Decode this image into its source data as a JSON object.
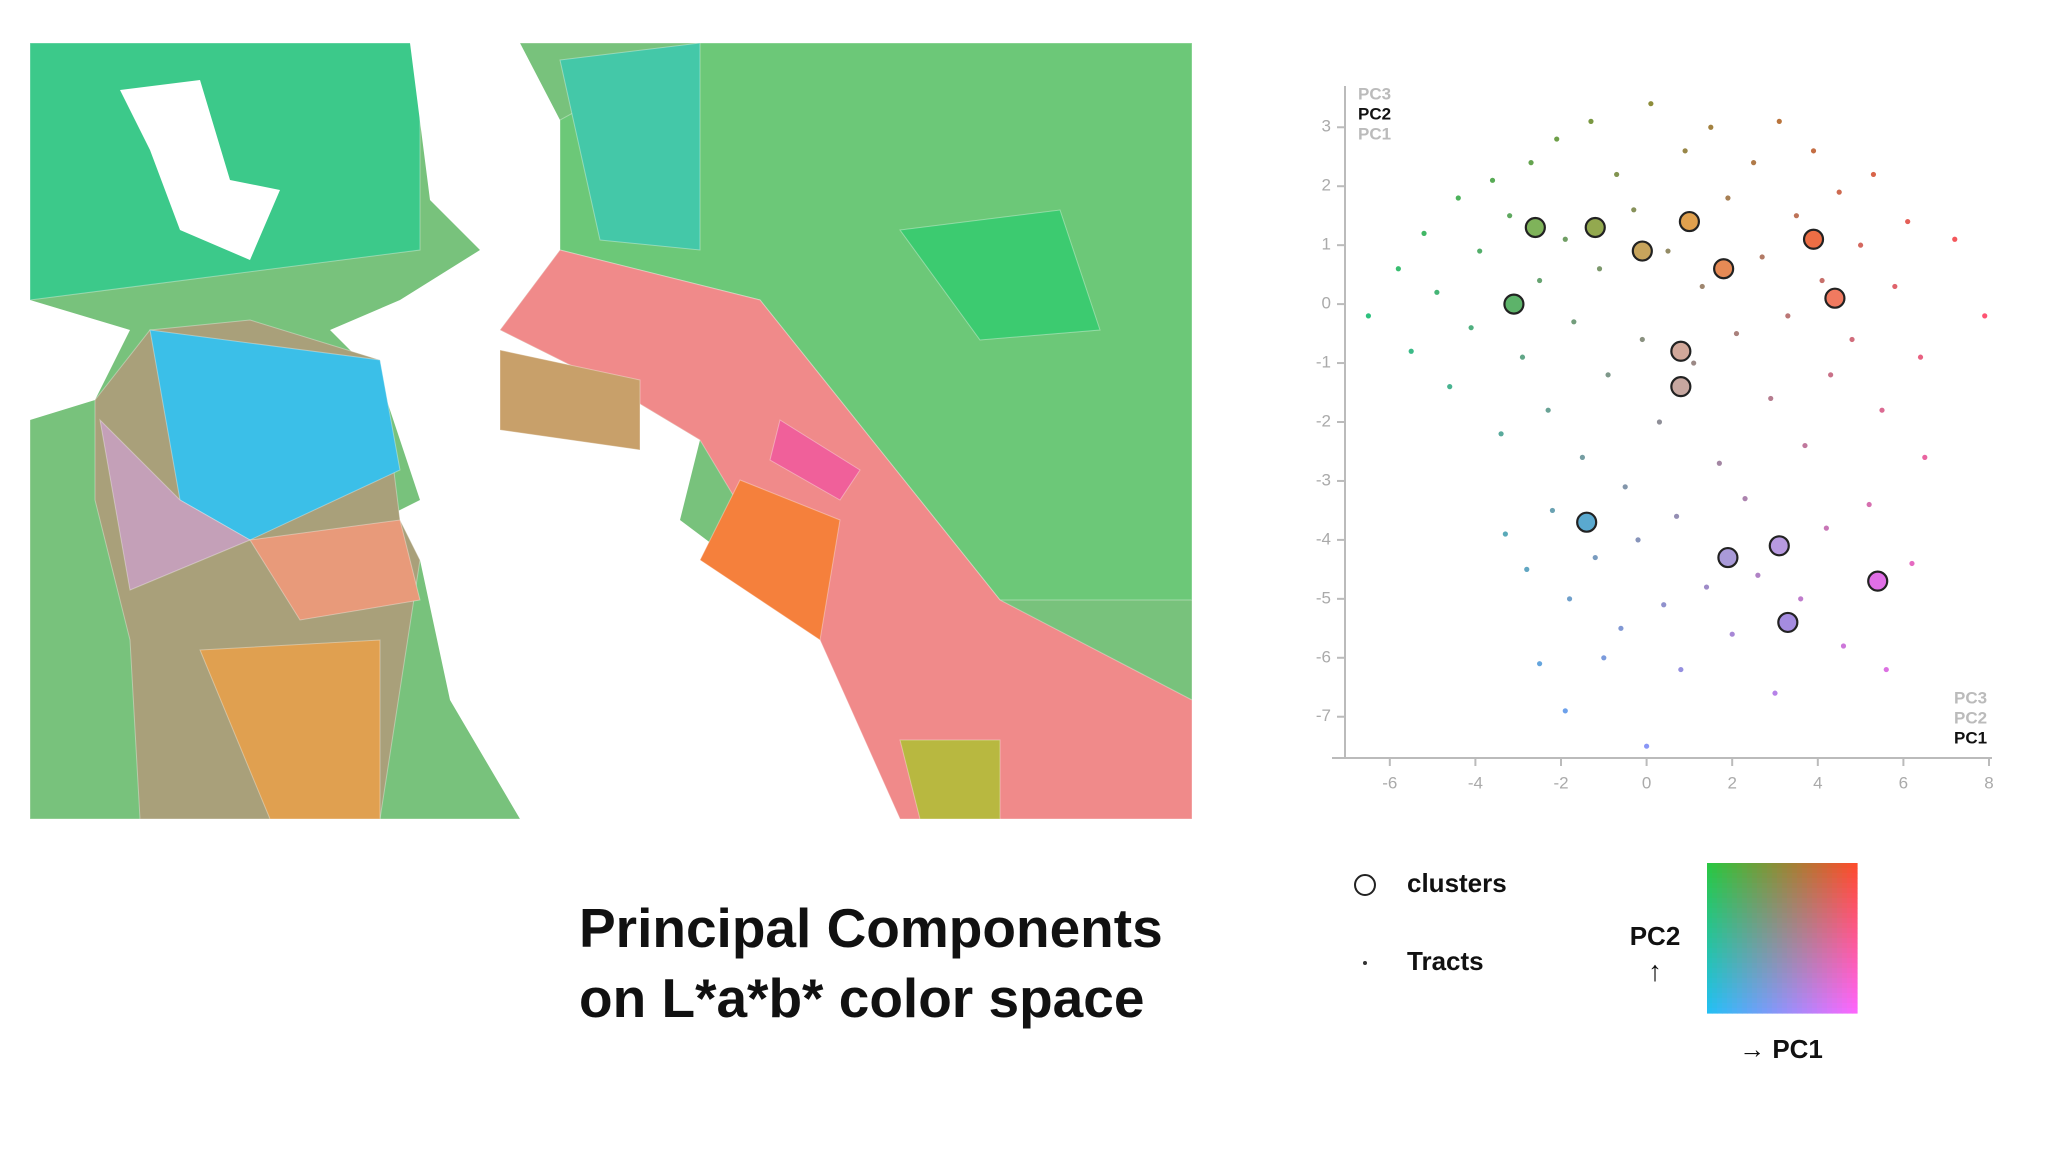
{
  "chart_data": {
    "type": "scatter",
    "title": [
      "Principal Components",
      "on L*a*b* color space"
    ],
    "axis_options": [
      "PC3",
      "PC2",
      "PC1"
    ],
    "x_label": "PC1",
    "y_label": "PC2",
    "xlim": [
      -7,
      8
    ],
    "ylim": [
      -7.7,
      3.7
    ],
    "xticks": [
      -6,
      -4,
      -2,
      0,
      2,
      4,
      6,
      8
    ],
    "yticks": [
      3,
      2,
      1,
      0,
      -1,
      -2,
      -3,
      -4,
      -5,
      -6,
      -7
    ],
    "colormap": {
      "top_left": "#28c840",
      "top_right": "#ff4a2a",
      "bottom_left": "#22c0f5",
      "bottom_right": "#ff66ff"
    },
    "colormap_y_label": "PC2",
    "colormap_y_arrow": "↑",
    "colormap_x_label": "→ PC1",
    "series": [
      {
        "name": "clusters",
        "marker": "circle",
        "x": [
          -2.6,
          -1.2,
          -0.1,
          1.0,
          1.8,
          3.9,
          4.4,
          -3.1,
          0.8,
          0.8,
          -1.4,
          1.9,
          3.1,
          5.4,
          3.3
        ],
        "values": [
          1.3,
          1.3,
          0.9,
          1.4,
          0.6,
          1.1,
          0.1,
          0.0,
          -0.8,
          -1.4,
          -3.7,
          -4.3,
          -4.1,
          -4.7,
          -5.4
        ],
        "colors": [
          "#7fb35a",
          "#93a94f",
          "#c7a45c",
          "#e0a04e",
          "#e68a55",
          "#ec6e45",
          "#f07a60",
          "#5db36a",
          "#d2a89a",
          "#c7a7a0",
          "#5aa9cf",
          "#a99ad8",
          "#b89ae0",
          "#e06fe6",
          "#a58ce0"
        ]
      },
      {
        "name": "Tracts",
        "marker": "dot",
        "color_by": "colormap",
        "x": [
          -6.5,
          -5.8,
          -5.5,
          -5.2,
          -4.9,
          -4.6,
          -4.4,
          -4.1,
          -3.9,
          -3.6,
          -3.4,
          -3.2,
          -2.9,
          -2.7,
          -2.5,
          -2.3,
          -2.1,
          -1.9,
          -1.7,
          -1.5,
          -1.3,
          -1.1,
          -0.9,
          -0.7,
          -0.5,
          -0.3,
          -0.1,
          0.1,
          0.3,
          0.5,
          0.7,
          0.9,
          1.1,
          1.3,
          1.5,
          1.7,
          1.9,
          2.1,
          2.3,
          2.5,
          2.7,
          2.9,
          3.1,
          3.3,
          3.5,
          3.7,
          3.9,
          4.1,
          4.3,
          4.5,
          4.8,
          5.0,
          5.3,
          5.5,
          5.8,
          6.1,
          6.4,
          7.2,
          7.9,
          -3.3,
          -2.8,
          -2.2,
          -1.8,
          -1.2,
          -0.6,
          -0.2,
          0.4,
          0.8,
          -2.5,
          -1.0,
          1.4,
          2.0,
          2.6,
          3.0,
          3.6,
          4.2,
          4.6,
          5.2,
          5.6,
          6.2,
          6.5,
          0.0,
          -1.9
        ],
        "values": [
          -0.2,
          0.6,
          -0.8,
          1.2,
          0.2,
          -1.4,
          1.8,
          -0.4,
          0.9,
          2.1,
          -2.2,
          1.5,
          -0.9,
          2.4,
          0.4,
          -1.8,
          2.8,
          1.1,
          -0.3,
          -2.6,
          3.1,
          0.6,
          -1.2,
          2.2,
          -3.1,
          1.6,
          -0.6,
          3.4,
          -2.0,
          0.9,
          -3.6,
          2.6,
          -1.0,
          0.3,
          3.0,
          -2.7,
          1.8,
          -0.5,
          -3.3,
          2.4,
          0.8,
          -1.6,
          3.1,
          -0.2,
          1.5,
          -2.4,
          2.6,
          0.4,
          -1.2,
          1.9,
          -0.6,
          1.0,
          2.2,
          -1.8,
          0.3,
          1.4,
          -0.9,
          1.1,
          -0.2,
          -3.9,
          -4.5,
          -3.5,
          -5.0,
          -4.3,
          -5.5,
          -4.0,
          -5.1,
          -6.2,
          -6.1,
          -6.0,
          -4.8,
          -5.6,
          -4.6,
          -6.6,
          -5.0,
          -3.8,
          -5.8,
          -3.4,
          -6.2,
          -4.4,
          -2.6,
          -7.5,
          -6.9
        ]
      }
    ]
  }
}
